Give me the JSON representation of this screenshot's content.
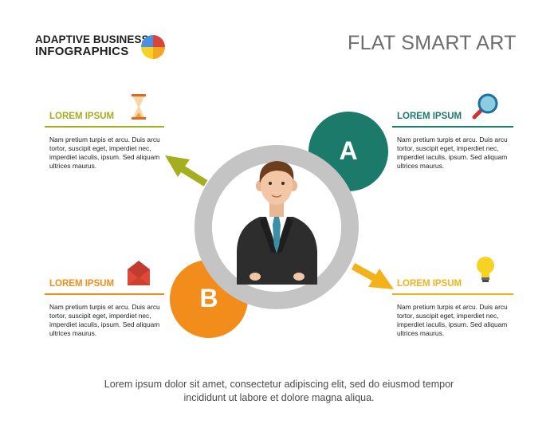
{
  "brand": {
    "line1": "ADAPTIVE BUSINESS",
    "line2": "INFOGRAPHICS",
    "logo_colors": [
      "#f5a623",
      "#d9443f",
      "#4a90e2",
      "#f5d223"
    ]
  },
  "title": "FLAT SMART ART",
  "center": {
    "ring_color": "#c4c4c4",
    "figure": "businessman-avatar"
  },
  "options": [
    {
      "letter": "A",
      "color": "#1b7a6a"
    },
    {
      "letter": "B",
      "color": "#f28c1a"
    }
  ],
  "callouts": {
    "top_left": {
      "title": "LOREM IPSUM",
      "color": "#a4ae1e",
      "icon": "hourglass-icon",
      "lines": [
        "Nam pretium turpis et arcu. Duis arcu",
        "tortor, suscipit eget, imperdiet nec,",
        "imperdiet iaculis, ipsum. Sed aliquam",
        "ultrices maurus."
      ]
    },
    "top_right": {
      "title": "LOREM IPSUM",
      "color": "#1b7a6a",
      "icon": "magnifier-icon",
      "lines": [
        "Nam pretium turpis et arcu. Duis arcu",
        "tortor, suscipit eget, imperdiet nec,",
        "imperdiet iaculis, ipsum. Sed aliquam",
        "ultrices maurus."
      ]
    },
    "bottom_left": {
      "title": "LOREM IPSUM",
      "color": "#f28c1a",
      "icon": "envelope-icon",
      "lines": [
        "Nam pretium turpis et arcu. Duis arcu",
        "tortor, suscipit eget, imperdiet nec,",
        "imperdiet iaculis, ipsum. Sed aliquam",
        "ultrices maurus."
      ]
    },
    "bottom_right": {
      "title": "LOREM IPSUM",
      "color": "#f2b21a",
      "icon": "lightbulb-icon",
      "lines": [
        "Nam pretium turpis et arcu. Duis arcu",
        "tortor, suscipit eget, imperdiet nec,",
        "imperdiet iaculis, ipsum. Sed aliquam",
        "ultrices maurus."
      ]
    }
  },
  "arrows": {
    "left_color": "#a4ae1e",
    "right_color": "#f2b21a"
  },
  "footer": {
    "line1": "Lorem ipsum dolor sit amet, consectetur adipiscing elit, sed do eiusmod tempor",
    "line2": "incididunt ut labore et dolore magna aliqua."
  }
}
